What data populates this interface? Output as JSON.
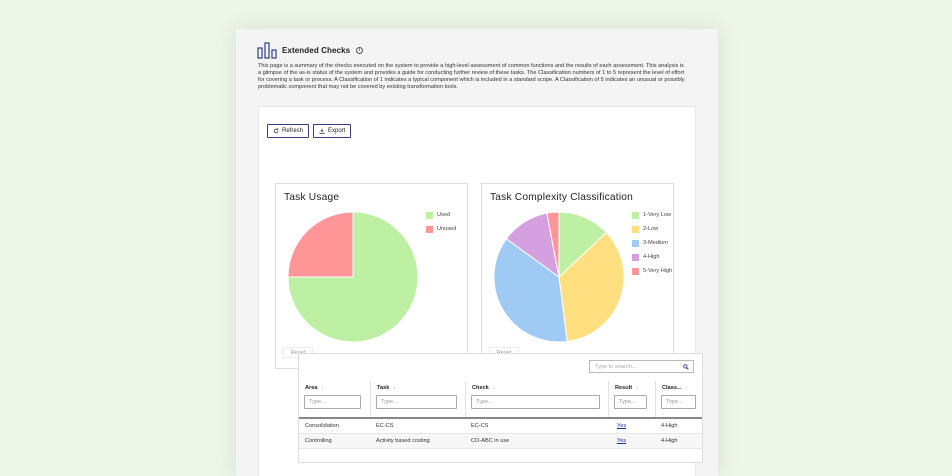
{
  "page": {
    "title": "Extended Checks",
    "description": "This page is a summary of the checks executed on the system to provide a high-level assessment of common functions and the results of each assessment. This analysis is a glimpse of the as-is status of the system and provides a guide for conducting further review of these tasks. The Classification numbers of 1 to 5 represent the level of effort for covering a task or process. A Classification of 1 indicates a typical component which is included in a standard scope. A Classification of 5 indicates an unusual or possibly problematic component that may not be covered by existing transformation tools."
  },
  "toolbar": {
    "refresh_label": "Refresh",
    "export_label": "Export"
  },
  "colors": {
    "used": "#bdf0a2",
    "unused": "#ff9597",
    "very_low": "#bdf0a2",
    "low": "#ffdf80",
    "medium": "#9ecaf3",
    "high": "#d4a0e0",
    "very_high": "#ff9597"
  },
  "chart_data": [
    {
      "type": "pie",
      "title": "Task Usage",
      "labels": [
        "Used",
        "Unused"
      ],
      "values": [
        75,
        25
      ],
      "colors": [
        "#bdf0a2",
        "#ff9597"
      ],
      "legend": "right",
      "reset_label": "Reset"
    },
    {
      "type": "pie",
      "title": "Task Complexity Classification",
      "labels": [
        "1-Very Low",
        "2-Low",
        "3-Medium",
        "4-High",
        "5-Very High"
      ],
      "values": [
        13,
        35,
        37,
        12,
        3
      ],
      "colors": [
        "#bdf0a2",
        "#ffdf80",
        "#9ecaf3",
        "#d4a0e0",
        "#ff9597"
      ],
      "legend": "right",
      "reset_label": "Reset"
    }
  ],
  "table": {
    "search_placeholder": "Type to search...",
    "columns": [
      {
        "label": "Area",
        "filter_placeholder": "Type..."
      },
      {
        "label": "Task",
        "filter_placeholder": "Type..."
      },
      {
        "label": "Check",
        "filter_placeholder": "Type..."
      },
      {
        "label": "Result",
        "filter_placeholder": "Type..."
      },
      {
        "label": "Class...",
        "filter_placeholder": "Type..."
      }
    ],
    "rows": [
      {
        "area": "Consolidation",
        "task": "EC-CS",
        "check": "EC-CS",
        "result": "Yes",
        "class": "4-High"
      },
      {
        "area": "Controlling",
        "task": "Activity based costing",
        "check": "CO-ABC in use",
        "result": "Yes",
        "class": "4-High"
      }
    ]
  }
}
